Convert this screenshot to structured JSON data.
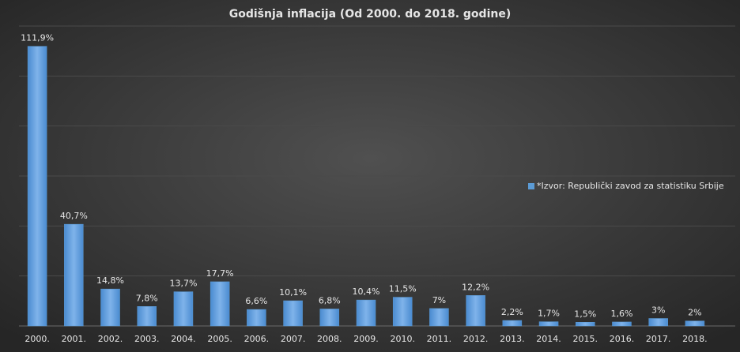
{
  "chart_data": {
    "type": "bar",
    "title": "Godišnja inflacija (Od 2000. do 2018. godine)",
    "categories": [
      "2000.",
      "2001.",
      "2002.",
      "2003.",
      "2004.",
      "2005.",
      "2006.",
      "2007.",
      "2008.",
      "2009.",
      "2010.",
      "2011.",
      "2012.",
      "2013.",
      "2014.",
      "2015.",
      "2016.",
      "2017.",
      "2018."
    ],
    "series": [
      {
        "name": "*Izvor: Republički zavod za statistiku Srbije",
        "color": "#5b9bd5",
        "values": [
          111.9,
          40.7,
          14.8,
          7.8,
          13.7,
          17.7,
          6.6,
          10.1,
          6.8,
          10.4,
          11.5,
          7,
          12.2,
          2.2,
          1.7,
          1.5,
          1.6,
          3,
          2
        ],
        "value_labels": [
          "111,9%",
          "40,7%",
          "14,8%",
          "7,8%",
          "13,7%",
          "17,7%",
          "6,6%",
          "10,1%",
          "6,8%",
          "10,4%",
          "11,5%",
          "7%",
          "12,2%",
          "2,2%",
          "1,7%",
          "1,5%",
          "1,6%",
          "3%",
          "2%"
        ]
      }
    ],
    "ylim": [
      0,
      120
    ],
    "yticks": [
      0,
      20,
      40,
      60,
      80,
      100,
      120
    ],
    "grid": true,
    "legend": "right"
  }
}
